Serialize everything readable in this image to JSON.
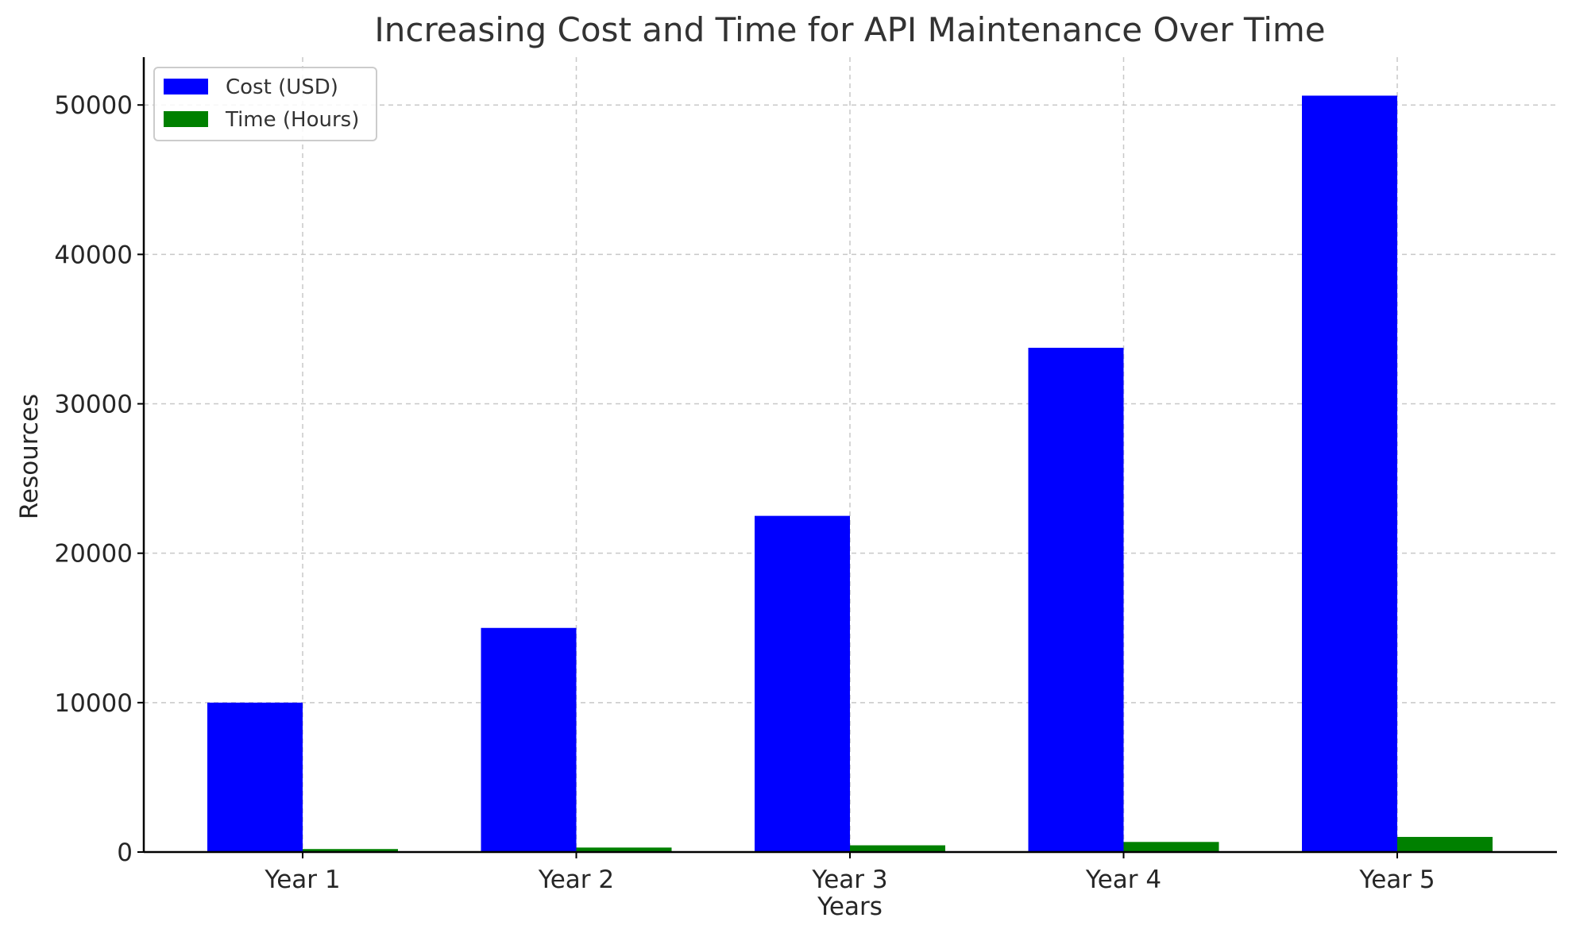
{
  "chart_data": {
    "type": "bar",
    "title": "Increasing Cost and Time for API Maintenance Over Time",
    "xlabel": "Years",
    "ylabel": "Resources",
    "categories": [
      "Year 1",
      "Year 2",
      "Year 3",
      "Year 4",
      "Year 5"
    ],
    "series": [
      {
        "name": "Cost (USD)",
        "color": "#0000ff",
        "values": [
          10000,
          15000,
          22500,
          33750,
          50625
        ]
      },
      {
        "name": "Time (Hours)",
        "color": "#008000",
        "values": [
          200,
          300,
          450,
          675,
          1012
        ]
      }
    ],
    "ylim": [
      0,
      53200
    ],
    "yticks": [
      0,
      10000,
      20000,
      30000,
      40000,
      50000
    ],
    "ytick_labels": [
      "0",
      "10000",
      "20000",
      "30000",
      "40000",
      "50000"
    ],
    "grid": true,
    "legend_position": "top-left"
  }
}
